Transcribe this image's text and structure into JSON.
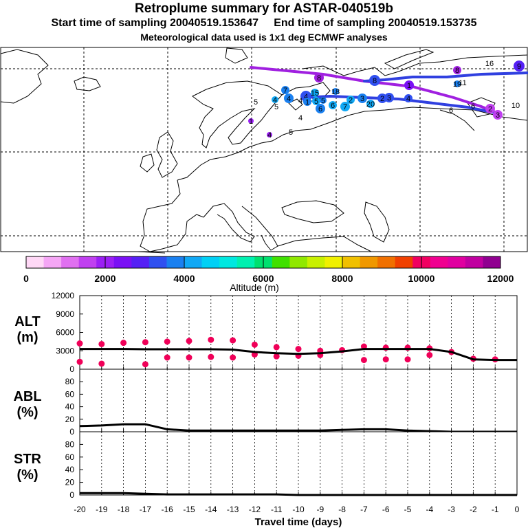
{
  "header": {
    "title": "Retroplume summary for ASTAR-040519b",
    "sampling": "Start time of sampling 20040519.153647     End time of sampling 20040519.153735",
    "met": "Meteorological data used is 1x1 deg ECMWF analyses"
  },
  "colorbar": {
    "colors": [
      "#ffd8f6",
      "#f5a6f5",
      "#e070f0",
      "#c040f0",
      "#9b1ff5",
      "#7a10f5",
      "#5520f5",
      "#3050f0",
      "#1a80f0",
      "#10a8f5",
      "#00d0f5",
      "#00e8e0",
      "#00f0b0",
      "#00e070",
      "#40e000",
      "#90e800",
      "#c8f000",
      "#f0f000",
      "#f0c000",
      "#f09800",
      "#f07000",
      "#f04000",
      "#f00060",
      "#f00090",
      "#e000a0",
      "#c000a0",
      "#900090"
    ],
    "labels": [
      "0",
      "2000",
      "4000",
      "6000",
      "8000",
      "10000",
      "12000"
    ],
    "title": "Altitude (m)"
  },
  "map": {
    "labels": [
      "8",
      "18",
      "10",
      "19",
      "8",
      "1",
      "8",
      "16",
      "15",
      "7",
      "4",
      "4",
      "1",
      "5",
      "2",
      "3",
      "20",
      "2",
      "9",
      "5",
      "4",
      "5",
      "6",
      "7",
      "6",
      "3",
      "4",
      "6",
      "6",
      "4",
      "5",
      "4",
      "11",
      "1",
      "2",
      "3",
      "4",
      "5"
    ]
  },
  "chart_data": [
    {
      "type": "line",
      "name": "ALT",
      "ylabel": "ALT\n(m)",
      "ylim": [
        0,
        12000
      ],
      "yticks": [
        "12000",
        "9000",
        "6000",
        "3000",
        "0"
      ],
      "x": [
        -20,
        -19,
        -18,
        -17,
        -16,
        -15,
        -14,
        -13,
        -12,
        -11,
        -10,
        -9,
        -8,
        -7,
        -6,
        -5,
        -4,
        -3,
        -2,
        -1,
        0
      ],
      "values": [
        3300,
        3300,
        3300,
        3250,
        3250,
        3250,
        3250,
        3200,
        2800,
        2600,
        2500,
        2600,
        2900,
        3300,
        3300,
        3300,
        3300,
        2800,
        1600,
        1500,
        1500
      ],
      "clusters": [
        [
          -20,
          4200
        ],
        [
          -19,
          4100
        ],
        [
          -18,
          4300
        ],
        [
          -17,
          4400
        ],
        [
          -16,
          4500
        ],
        [
          -15,
          4600
        ],
        [
          -14,
          4800
        ],
        [
          -13,
          4700
        ],
        [
          -12,
          4000
        ],
        [
          -11,
          3600
        ],
        [
          -10,
          3300
        ],
        [
          -9,
          3000
        ],
        [
          -8,
          3100
        ],
        [
          -7,
          3700
        ],
        [
          -6,
          3500
        ],
        [
          -5,
          3500
        ],
        [
          -4,
          3400
        ],
        [
          -3,
          2800
        ],
        [
          -2,
          1700
        ],
        [
          -1,
          1600
        ],
        [
          -20,
          1200
        ],
        [
          -19,
          900
        ],
        [
          -17,
          800
        ],
        [
          -16,
          1900
        ],
        [
          -15,
          1900
        ],
        [
          -14,
          2000
        ],
        [
          -13,
          1900
        ],
        [
          -12,
          2400
        ],
        [
          -11,
          2100
        ],
        [
          -10,
          2200
        ],
        [
          -9,
          2300
        ],
        [
          -7,
          1500
        ],
        [
          -6,
          1600
        ],
        [
          -5,
          1600
        ],
        [
          -4,
          2300
        ]
      ]
    },
    {
      "type": "line",
      "name": "ABL",
      "ylabel": "ABL\n(%)",
      "ylim": [
        0,
        100
      ],
      "yticks": [
        "80",
        "60",
        "40",
        "20",
        "0"
      ],
      "x": [
        -20,
        -19,
        -18,
        -17,
        -16,
        -15,
        -14,
        -13,
        -12,
        -11,
        -10,
        -9,
        -8,
        -7,
        -6,
        -5,
        -4,
        -3,
        -2,
        -1,
        0
      ],
      "values": [
        9,
        10,
        12,
        12,
        4,
        2,
        2,
        2,
        2,
        2,
        2,
        2,
        3,
        4,
        4,
        2,
        1,
        0,
        0,
        0,
        0
      ]
    },
    {
      "type": "line",
      "name": "STR",
      "ylabel": "STR\n(%)",
      "ylim": [
        0,
        100
      ],
      "yticks": [
        "80",
        "60",
        "40",
        "20",
        "0"
      ],
      "x": [
        -20,
        -19,
        -18,
        -17,
        -16,
        -15,
        -14,
        -13,
        -12,
        -11,
        -10,
        -9,
        -8,
        -7,
        -6,
        -5,
        -4,
        -3,
        -2,
        -1,
        0
      ],
      "values": [
        3,
        3,
        3,
        2,
        1,
        1,
        1,
        1,
        1,
        1,
        0,
        0,
        0,
        0,
        0,
        0,
        0,
        0,
        0,
        0,
        0
      ]
    }
  ],
  "xaxis": {
    "title": "Travel time (days)",
    "ticks": [
      "-20",
      "-19",
      "-18",
      "-17",
      "-16",
      "-15",
      "-14",
      "-13",
      "-12",
      "-11",
      "-10",
      "-9",
      "-8",
      "-7",
      "-6",
      "-5",
      "-4",
      "-3",
      "-2",
      "-1",
      "0"
    ]
  }
}
